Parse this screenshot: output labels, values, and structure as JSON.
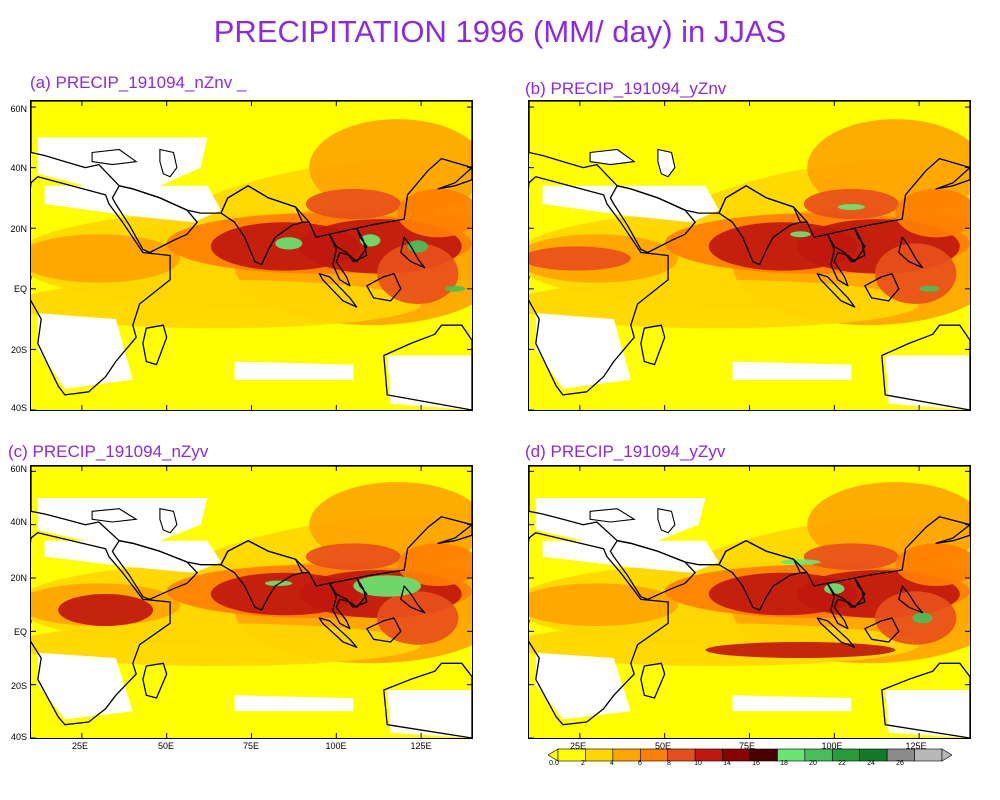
{
  "title": "PRECIPITATION 1996 (MM/ day) in JJAS",
  "panels": [
    {
      "label": "(a)  PRECIP_191094_nZnv _"
    },
    {
      "label": "(b)  PRECIP_191094_yZnv"
    },
    {
      "label": "(c)  PRECIP_191094_nZyv"
    },
    {
      "label": "(d)  PRECIP_191094_yZyv"
    }
  ],
  "lat_ticks": [
    "60N",
    "40N",
    "20N",
    "EQ",
    "20S",
    "40S"
  ],
  "lon_ticks": [
    "25E",
    "50E",
    "75E",
    "100E",
    "125E"
  ],
  "colorbar": {
    "labels": [
      "0.0",
      "2",
      "4",
      "6",
      "8",
      "10",
      "14",
      "16",
      "18",
      "20",
      "22",
      "24",
      "26"
    ],
    "colors": [
      "#ffff00",
      "#ffd700",
      "#ffa500",
      "#ff7f00",
      "#e8501a",
      "#c0180e",
      "#8b0000",
      "#4a0000",
      "#66e673",
      "#45c05a",
      "#269c3d",
      "#107a28",
      "#8c8c8c",
      "#b8b8b8"
    ]
  }
}
